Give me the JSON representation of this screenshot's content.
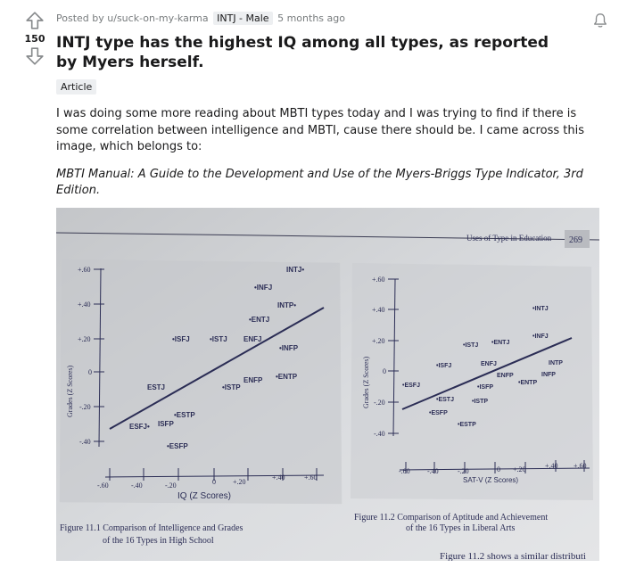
{
  "post": {
    "score": "150",
    "meta": {
      "prefix": "Posted by",
      "author": "u/suck-on-my-karma",
      "flair": "INTJ - Male",
      "time": "5 months ago"
    },
    "title": "INTJ type has the highest IQ among all types, as reported by Myers herself.",
    "tag": "Article",
    "body_text": "I was doing some more reading about MBTI types today and I was trying to find if there is some correlation between intelligence and MBTI, cause there should be. I came across this image, which belongs to:",
    "citation": "MBTI Manual: A Guide to the Development and Use of the Myers-Briggs Type Indicator, 3rd Edition."
  },
  "photo": {
    "header_text": "Uses of Type in Education",
    "page_number": "269",
    "fig1": {
      "ylabel": "Grades (Z Scores)",
      "xlabel": "IQ (Z Scores)",
      "yticks": [
        "+.60",
        "+.40",
        "+.20",
        "0",
        "-.20",
        "-.40"
      ],
      "xticks": [
        "-.60",
        "-.40",
        "-.20",
        "0",
        "+.20",
        "+.40",
        "+.60"
      ],
      "types": [
        "INTJ•",
        "•INFJ",
        "INTP•",
        "•ENTJ",
        "•ISFJ",
        "•ISTJ",
        "ENFJ",
        "•INFP",
        "ESTJ",
        "ENFP",
        "•ISTP",
        "•ENTP",
        "•ESTP",
        "ESFJ•",
        "ISFP",
        "•ESFP"
      ],
      "caption_line1": "Figure 11.1  Comparison of Intelligence and Grades",
      "caption_line2": "of the 16 Types in High School"
    },
    "fig2": {
      "ylabel": "Grades (Z Scores)",
      "xlabel": "SAT-V (Z Scores)",
      "yticks": [
        "+.60",
        "+.40",
        "+.20",
        "0",
        "-.20",
        "-.40"
      ],
      "xticks": [
        "-.60",
        "-.40",
        "-.20",
        "0",
        "+.20",
        "+.40",
        "+.60"
      ],
      "types": [
        "•INTJ",
        "•INFJ",
        "•ISTJ",
        "•ENTJ",
        "•ISFJ",
        "ENFJ",
        "INTP",
        "ENFP",
        "INFP",
        "•ESFJ",
        "•ISFP",
        "•ENTP",
        "•ESTJ",
        "•ISTP",
        "•ESFP",
        "•ESTP"
      ],
      "caption_line1": "Figure 11.2  Comparison of Aptitude and Achievement",
      "caption_line2": "of the 16 Types in Liberal Arts"
    },
    "footer_text": "Figure 11.2 shows a similar distributi"
  },
  "colors": {
    "page": "#d6d9dd",
    "ink": "#2b2d55",
    "upvote": "#878a8c"
  }
}
